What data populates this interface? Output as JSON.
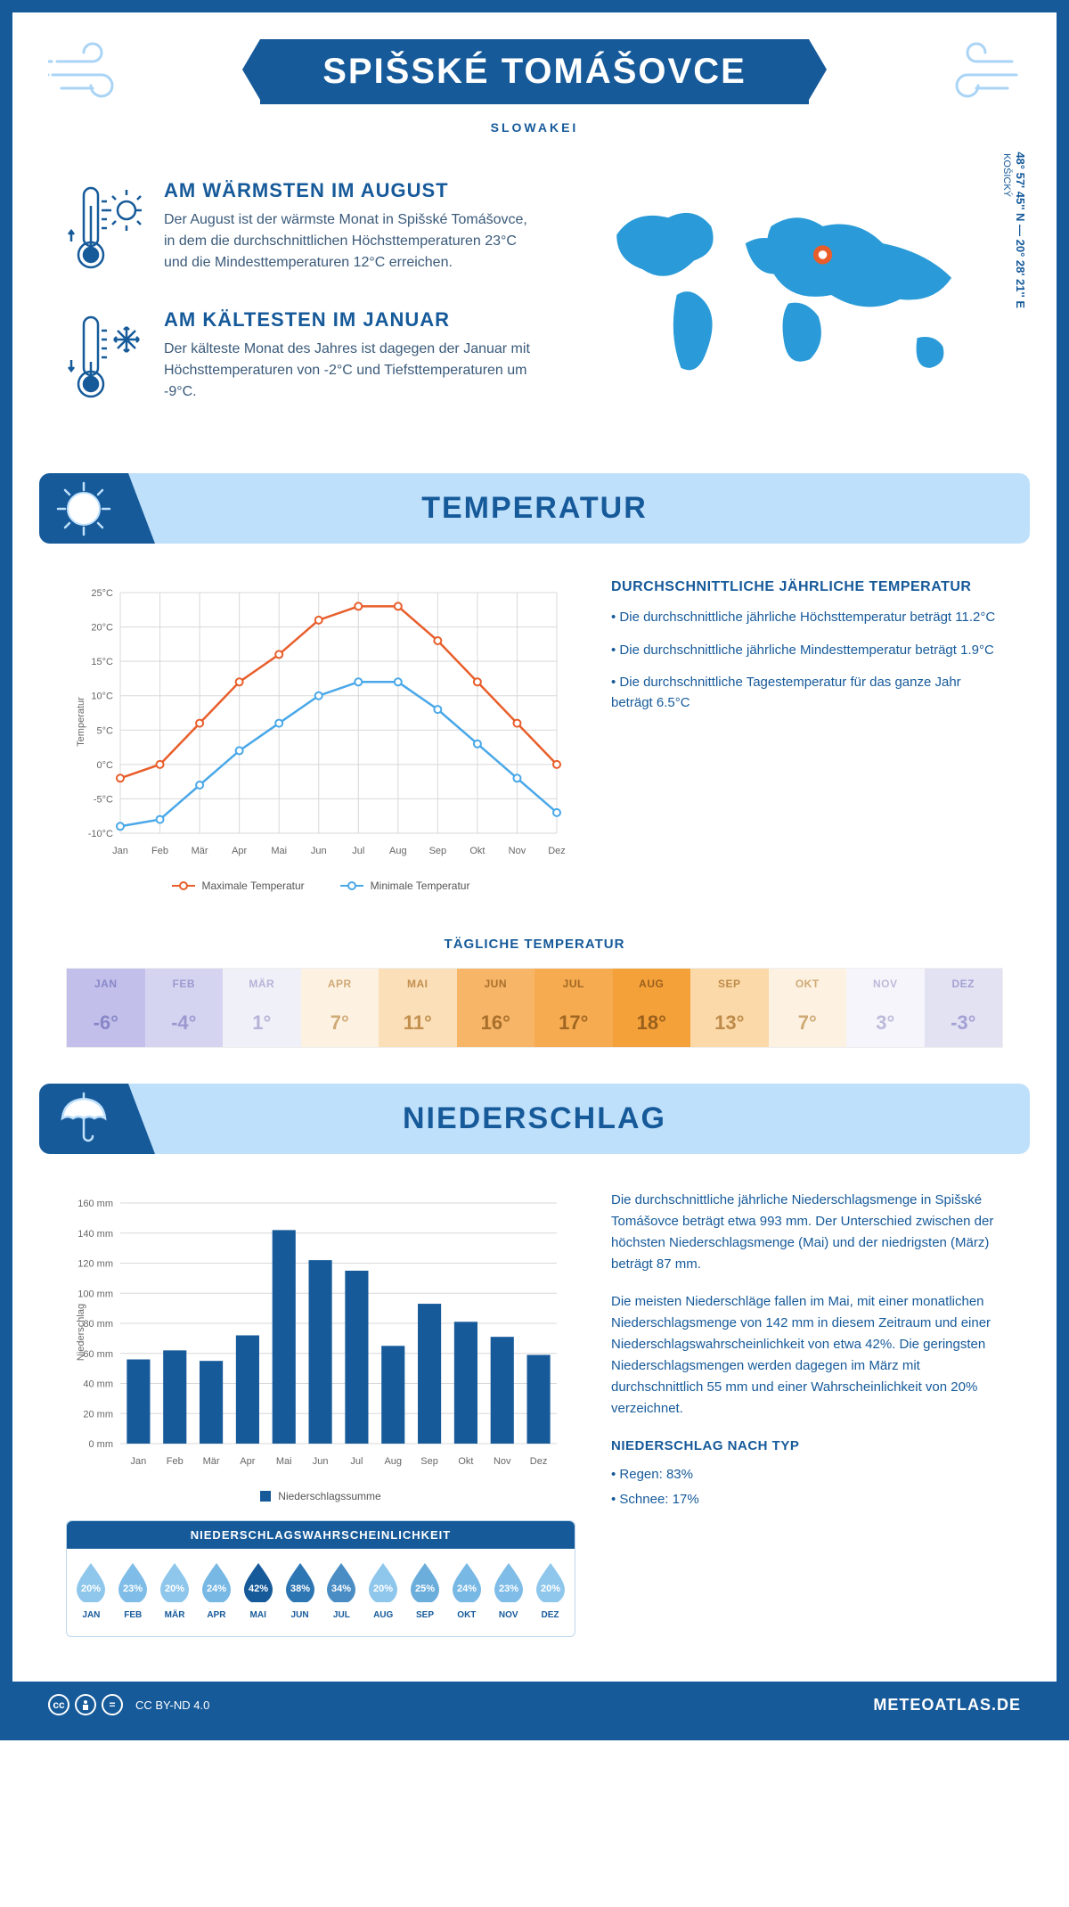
{
  "header": {
    "title": "SPIŠSKÉ TOMÁŠOVCE",
    "subtitle": "SLOWAKEI"
  },
  "map": {
    "coords": "48° 57' 45'' N — 20° 28' 21'' E",
    "region": "KOŠICKÝ",
    "marker": {
      "cx_pct": 58,
      "cy_pct": 32
    },
    "land_color": "#2a9bd8",
    "ocean_color": "#ffffff",
    "marker_outer": "#e85e2b",
    "marker_inner": "#ffffff"
  },
  "facts": {
    "warm": {
      "title": "AM WÄRMSTEN IM AUGUST",
      "text": "Der August ist der wärmste Monat in Spišské Tomášovce, in dem die durchschnittlichen Höchsttemperaturen 23°C und die Mindesttemperaturen 12°C erreichen."
    },
    "cold": {
      "title": "AM KÄLTESTEN IM JANUAR",
      "text": "Der kälteste Monat des Jahres ist dagegen der Januar mit Höchsttemperaturen von -2°C und Tiefsttemperaturen um -9°C."
    }
  },
  "temperature": {
    "section_title": "TEMPERATUR",
    "months": [
      "Jan",
      "Feb",
      "Mär",
      "Apr",
      "Mai",
      "Jun",
      "Jul",
      "Aug",
      "Sep",
      "Okt",
      "Nov",
      "Dez"
    ],
    "max": [
      -2,
      0,
      6,
      12,
      16,
      21,
      23,
      23,
      18,
      12,
      6,
      0
    ],
    "min": [
      -9,
      -8,
      -3,
      2,
      6,
      10,
      12,
      12,
      8,
      3,
      -2,
      -7
    ],
    "max_color": "#e85e2b",
    "min_color": "#4aa8e8",
    "y_min": -10,
    "y_max": 25,
    "y_step": 5,
    "y_axis_label": "Temperatur",
    "grid_color": "#d8d8d8",
    "legend_max": "Maximale Temperatur",
    "legend_min": "Minimale Temperatur",
    "info_title": "DURCHSCHNITTLICHE JÄHRLICHE TEMPERATUR",
    "bullets": [
      "• Die durchschnittliche jährliche Höchsttemperatur beträgt 11.2°C",
      "• Die durchschnittliche jährliche Mindesttemperatur beträgt 1.9°C",
      "• Die durchschnittliche Tagestemperatur für das ganze Jahr beträgt 6.5°C"
    ]
  },
  "daily": {
    "title": "TÄGLICHE TEMPERATUR",
    "months": [
      "JAN",
      "FEB",
      "MÄR",
      "APR",
      "MAI",
      "JUN",
      "JUL",
      "AUG",
      "SEP",
      "OKT",
      "NOV",
      "DEZ"
    ],
    "temps": [
      "-6°",
      "-4°",
      "1°",
      "7°",
      "11°",
      "16°",
      "17°",
      "18°",
      "13°",
      "7°",
      "3°",
      "-3°"
    ],
    "bg_colors": [
      "#c2c0ea",
      "#d5d4f0",
      "#f0f0f8",
      "#fdf2e2",
      "#fbdfb8",
      "#f7b567",
      "#f6ab50",
      "#f5a13a",
      "#fbd9a8",
      "#fdf2e2",
      "#f6f5fb",
      "#e3e2f3"
    ],
    "text_colors": [
      "#8886c8",
      "#9b99d0",
      "#b5b3d8",
      "#cfa976",
      "#c28f4f",
      "#a86f2b",
      "#a06722",
      "#9a601b",
      "#be8b4a",
      "#cfa976",
      "#bcbad9",
      "#a3a1d3"
    ]
  },
  "precipitation": {
    "section_title": "NIEDERSCHLAG",
    "months": [
      "Jan",
      "Feb",
      "Mär",
      "Apr",
      "Mai",
      "Jun",
      "Jul",
      "Aug",
      "Sep",
      "Okt",
      "Nov",
      "Dez"
    ],
    "values": [
      56,
      62,
      55,
      72,
      142,
      122,
      115,
      65,
      93,
      81,
      71,
      59
    ],
    "bar_color": "#165a9a",
    "y_max": 160,
    "y_step": 20,
    "y_axis_label": "Niederschlag",
    "legend_label": "Niederschlagssumme",
    "paragraphs": [
      "Die durchschnittliche jährliche Niederschlagsmenge in Spišské Tomášovce beträgt etwa 993 mm. Der Unterschied zwischen der höchsten Niederschlagsmenge (Mai) und der niedrigsten (März) beträgt 87 mm.",
      "Die meisten Niederschläge fallen im Mai, mit einer monatlichen Niederschlagsmenge von 142 mm in diesem Zeitraum und einer Niederschlagswahrscheinlichkeit von etwa 42%. Die geringsten Niederschlagsmengen werden dagegen im März mit durchschnittlich 55 mm und einer Wahrscheinlichkeit von 20% verzeichnet."
    ],
    "type_title": "NIEDERSCHLAG NACH TYP",
    "types": [
      "• Regen: 83%",
      "• Schnee: 17%"
    ]
  },
  "probability": {
    "title": "NIEDERSCHLAGSWAHRSCHEINLICHKEIT",
    "months": [
      "JAN",
      "FEB",
      "MÄR",
      "APR",
      "MAI",
      "JUN",
      "JUL",
      "AUG",
      "SEP",
      "OKT",
      "NOV",
      "DEZ"
    ],
    "values": [
      "20%",
      "23%",
      "20%",
      "24%",
      "42%",
      "38%",
      "34%",
      "20%",
      "25%",
      "24%",
      "23%",
      "20%"
    ],
    "colors": [
      "#8fc7ec",
      "#7fbde8",
      "#8fc7ec",
      "#78b8e5",
      "#165a9a",
      "#2d76b4",
      "#4a8dc4",
      "#8fc7ec",
      "#6baedc",
      "#78b8e5",
      "#7fbde8",
      "#8fc7ec"
    ]
  },
  "footer": {
    "license": "CC BY-ND 4.0",
    "brand": "METEOATLAS.DE"
  }
}
